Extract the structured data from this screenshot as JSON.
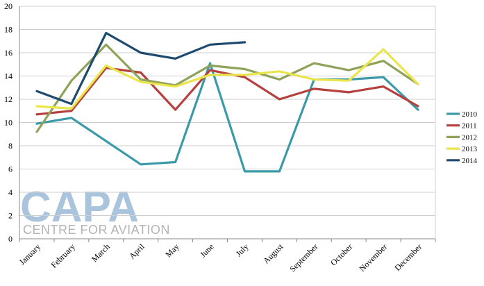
{
  "watermark": {
    "logo_text": "CAPA",
    "tagline": "CENTRE FOR AVIATION",
    "logo_color": "#a9c4dc",
    "tagline_color": "#b4b4b4"
  },
  "chart_data": {
    "type": "line",
    "title": "",
    "xlabel": "",
    "ylabel": "",
    "ylim": [
      0,
      20
    ],
    "yticks": [
      0,
      2,
      4,
      6,
      8,
      10,
      12,
      14,
      16,
      18,
      20
    ],
    "grid": "horizontal",
    "legend_position": "right",
    "categories": [
      "January",
      "February",
      "March",
      "April",
      "May",
      "June",
      "July",
      "August",
      "September",
      "October",
      "November",
      "December"
    ],
    "series": [
      {
        "name": "2010",
        "color": "#3a9aa8",
        "values": [
          9.9,
          10.4,
          null,
          6.4,
          6.6,
          15.1,
          5.8,
          5.8,
          13.7,
          13.7,
          13.9,
          11.1
        ]
      },
      {
        "name": "2011",
        "color": "#b5403e",
        "values": [
          10.7,
          11.0,
          14.7,
          14.3,
          11.1,
          14.5,
          13.9,
          12.0,
          12.9,
          12.6,
          13.1,
          11.4
        ]
      },
      {
        "name": "2012",
        "color": "#8ea25a",
        "values": [
          9.2,
          13.6,
          16.7,
          13.7,
          13.2,
          14.9,
          14.6,
          13.7,
          15.1,
          14.5,
          15.3,
          13.3
        ]
      },
      {
        "name": "2013",
        "color": "#e9e54a",
        "values": [
          11.4,
          11.2,
          14.9,
          13.5,
          13.1,
          14.1,
          14.1,
          14.4,
          13.7,
          13.6,
          16.3,
          13.3
        ]
      },
      {
        "name": "2014",
        "color": "#1d4a6e",
        "values": [
          12.7,
          11.6,
          17.7,
          16.0,
          15.5,
          16.7,
          16.9,
          null,
          null,
          null,
          null,
          null
        ]
      }
    ]
  }
}
